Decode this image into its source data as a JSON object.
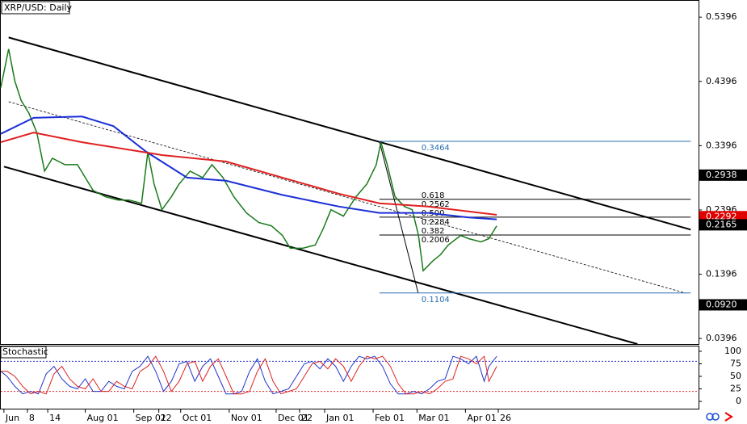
{
  "chart_data": [
    {
      "type": "line",
      "title": "XRP/USD: Daily",
      "xlim": [
        -54,
        392
      ],
      "ylim": [
        0.031,
        0.565
      ],
      "yticks": [
        0.5396,
        0.4396,
        0.3396,
        0.2396,
        0.1396,
        0.0396
      ],
      "xticks": [
        {
          "value": -52,
          "label": "Jun"
        },
        {
          "value": -37,
          "label": "8"
        },
        {
          "value": -24,
          "label": "14"
        },
        {
          "value": 0,
          "label": "Aug 01"
        },
        {
          "value": 31,
          "label": "Sep 01"
        },
        {
          "value": 47,
          "label": "22"
        },
        {
          "value": 61,
          "label": "Oct 01"
        },
        {
          "value": 92,
          "label": "Nov 01"
        },
        {
          "value": 122,
          "label": "Dec 01"
        },
        {
          "value": 137,
          "label": "22"
        },
        {
          "value": 153,
          "label": "Jan 01"
        },
        {
          "value": 184,
          "label": "Feb 01"
        },
        {
          "value": 212,
          "label": "Mar 01"
        },
        {
          "value": 243,
          "label": "Apr 01"
        },
        {
          "value": 264,
          "label": "26"
        }
      ],
      "series": [
        {
          "color": "#1a7a1a",
          "width": 1.5,
          "x": [
            -54,
            -49,
            -45,
            -41,
            -36,
            -31,
            -26,
            -21,
            -13,
            -5,
            0,
            5,
            13,
            21,
            28,
            36,
            40,
            44,
            49,
            55,
            60,
            67,
            75,
            81,
            88,
            95,
            103,
            111,
            119,
            126,
            131,
            139,
            147,
            152,
            157,
            165,
            173,
            180,
            186,
            189,
            193,
            198,
            204,
            209,
            213,
            216,
            222,
            227,
            232,
            240,
            245,
            253,
            258,
            263
          ],
          "values": [
            0.43,
            0.49,
            0.44,
            0.41,
            0.39,
            0.36,
            0.3,
            0.32,
            0.31,
            0.31,
            0.29,
            0.27,
            0.26,
            0.255,
            0.255,
            0.25,
            0.33,
            0.28,
            0.24,
            0.26,
            0.28,
            0.3,
            0.29,
            0.31,
            0.29,
            0.26,
            0.235,
            0.22,
            0.215,
            0.2,
            0.18,
            0.18,
            0.185,
            0.21,
            0.24,
            0.23,
            0.26,
            0.28,
            0.31,
            0.345,
            0.31,
            0.26,
            0.245,
            0.24,
            0.2,
            0.145,
            0.16,
            0.17,
            0.185,
            0.2,
            0.195,
            0.19,
            0.195,
            0.215
          ]
        },
        {
          "color": "#1c2fd6",
          "width": 2,
          "x": [
            -54,
            -33,
            -2,
            18,
            39,
            65,
            90,
            126,
            162,
            188,
            219,
            245,
            263
          ],
          "values": [
            0.358,
            0.383,
            0.385,
            0.37,
            0.33,
            0.29,
            0.285,
            0.263,
            0.245,
            0.235,
            0.235,
            0.228,
            0.225
          ]
        },
        {
          "color": "#e02020",
          "width": 2,
          "x": [
            -54,
            -33,
            -2,
            49,
            90,
            126,
            162,
            188,
            219,
            263
          ],
          "values": [
            0.345,
            0.36,
            0.345,
            0.325,
            0.315,
            0.29,
            0.265,
            0.25,
            0.245,
            0.232
          ]
        }
      ],
      "lines": [
        {
          "x": [
            -49,
            387
          ],
          "values": [
            0.508,
            0.209
          ],
          "color": "#000",
          "dash": false
        },
        {
          "x": [
            -52,
            353
          ],
          "values": [
            0.307,
            0.031
          ],
          "color": "#000",
          "dash": false
        },
        {
          "x": [
            -49,
            384
          ],
          "values": [
            0.408,
            0.11
          ],
          "color": "#000",
          "dash": true
        }
      ],
      "fib_x": [
        188,
        387
      ],
      "fib": [
        {
          "value": 0.3464,
          "color": "#2a6db0"
        },
        {
          "ratio": "0.618",
          "value": 0.2562,
          "color": "#000"
        },
        {
          "ratio": "0.500",
          "value": 0.2284,
          "color": "#000"
        },
        {
          "ratio": "0.382",
          "value": 0.2006,
          "color": "#000"
        },
        {
          "value": 0.1104,
          "color": "#2a6db0"
        }
      ],
      "markers": [
        {
          "value": 0.2938,
          "color": "#000"
        },
        {
          "value": 0.2292,
          "color": "#e00000"
        },
        {
          "value": 0.2165,
          "color": "#000"
        },
        {
          "value": 0.092,
          "label": "0.0920",
          "color": "#000"
        }
      ]
    },
    {
      "type": "line",
      "title": "Stochastic",
      "ylim": [
        -14.5,
        109.7
      ],
      "yticks": [
        100,
        75,
        50,
        25,
        0
      ],
      "levels": [
        {
          "value": 80,
          "color": "#2233cc"
        },
        {
          "value": 20,
          "color": "#dd2222"
        }
      ],
      "x": [
        -54,
        -50,
        -45,
        -40,
        -35,
        -30,
        -25,
        -20,
        -15,
        -10,
        -5,
        0,
        5,
        10,
        15,
        20,
        25,
        30,
        35,
        40,
        45,
        50,
        55,
        60,
        65,
        70,
        75,
        80,
        85,
        90,
        95,
        100,
        105,
        110,
        115,
        120,
        125,
        130,
        135,
        140,
        145,
        150,
        155,
        160,
        165,
        170,
        175,
        180,
        185,
        190,
        195,
        200,
        205,
        210,
        215,
        220,
        225,
        230,
        235,
        240,
        245,
        250,
        255,
        258,
        263
      ],
      "series": [
        {
          "color": "#2233cc",
          "values": [
            60,
            50,
            30,
            15,
            20,
            15,
            55,
            70,
            45,
            30,
            25,
            45,
            20,
            20,
            40,
            30,
            25,
            60,
            70,
            90,
            60,
            20,
            40,
            75,
            80,
            40,
            70,
            85,
            50,
            15,
            15,
            20,
            60,
            85,
            40,
            15,
            20,
            25,
            50,
            75,
            80,
            65,
            85,
            70,
            40,
            70,
            90,
            85,
            90,
            70,
            35,
            15,
            15,
            20,
            15,
            25,
            40,
            45,
            90,
            85,
            75,
            90,
            40,
            70,
            90
          ]
        },
        {
          "color": "#dd2222",
          "values": [
            60,
            60,
            50,
            30,
            15,
            20,
            15,
            55,
            70,
            45,
            30,
            25,
            45,
            20,
            20,
            40,
            30,
            25,
            60,
            70,
            90,
            60,
            20,
            40,
            75,
            80,
            40,
            70,
            85,
            50,
            15,
            15,
            20,
            60,
            85,
            40,
            15,
            20,
            25,
            50,
            75,
            80,
            65,
            85,
            70,
            40,
            70,
            90,
            85,
            90,
            70,
            35,
            15,
            15,
            20,
            15,
            25,
            40,
            45,
            90,
            85,
            75,
            90,
            40,
            70
          ]
        }
      ]
    }
  ]
}
